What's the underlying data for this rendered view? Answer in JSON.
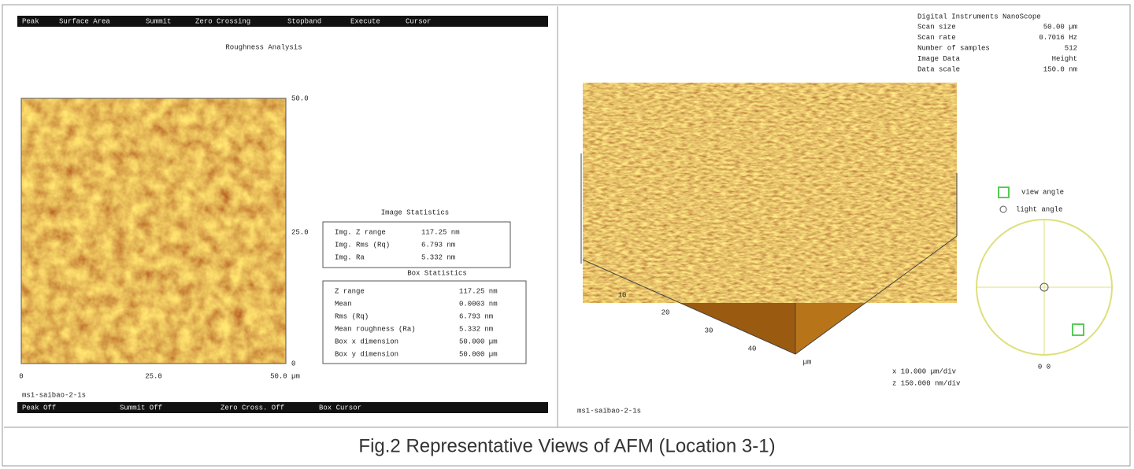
{
  "left_panel": {
    "menu": [
      "Peak",
      "Surface Area",
      "Summit",
      "Zero Crossing",
      "Stopband",
      "Execute",
      "Cursor"
    ],
    "title": "Roughness Analysis",
    "y_axis_labels": [
      "50.0",
      "25.0",
      "0"
    ],
    "x_axis_labels": [
      "0",
      "25.0",
      "50.0 µm"
    ],
    "image_statistics": {
      "title": "Image Statistics",
      "rows": [
        [
          "Img. Z range",
          "117.25 nm"
        ],
        [
          "Img. Rms (Rq)",
          "6.793 nm"
        ],
        [
          "Img. Ra",
          "5.332 nm"
        ]
      ]
    },
    "box_statistics": {
      "title": "Box Statistics",
      "rows": [
        [
          "Z range",
          "117.25 nm"
        ],
        [
          "Mean",
          "0.0003 nm"
        ],
        [
          "Rms (Rq)",
          "6.793 nm"
        ],
        [
          "Mean roughness (Ra)",
          "5.332 nm"
        ],
        [
          "Box x dimension",
          "50.000 µm"
        ],
        [
          "Box y dimension",
          "50.000 µm"
        ]
      ]
    },
    "filename": "ms1-saibao-2-1s",
    "status_bar": [
      "Peak Off",
      "Summit Off",
      "Zero Cross. Off",
      "Box Cursor"
    ]
  },
  "right_panel": {
    "instrument": "Digital Instruments NanoScope",
    "info": [
      [
        "Scan size",
        "50.00 µm"
      ],
      [
        "Scan rate",
        "0.7016 Hz"
      ],
      [
        "Number of samples",
        "512"
      ],
      [
        "Image Data",
        "Height"
      ],
      [
        "Data scale",
        "150.0 nm"
      ]
    ],
    "axis_labels": [
      "10",
      "20",
      "30",
      "40",
      "µm"
    ],
    "scale": [
      "x  10.000 µm/div",
      "z  150.000 nm/div"
    ],
    "view_angle": "view angle",
    "light_angle": "light angle",
    "angle_readout": "0 0",
    "filename": "ms1-saibao-2-1s"
  },
  "caption": "Fig.2 Representative Views of AFM (Location 3-1)"
}
